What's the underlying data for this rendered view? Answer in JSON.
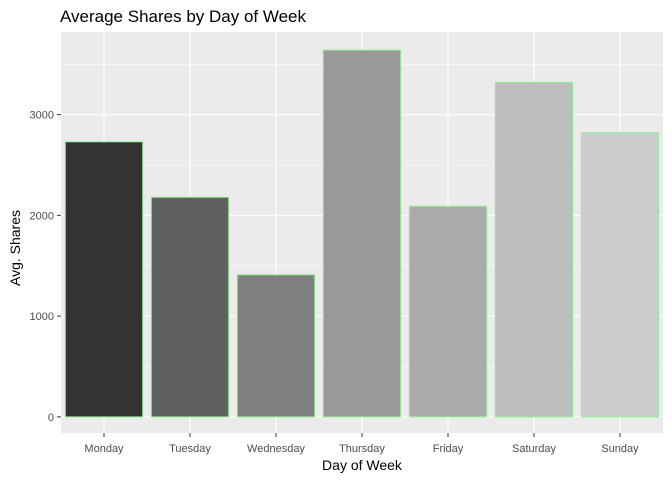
{
  "chart_data": {
    "type": "bar",
    "title": "Average Shares by Day of Week",
    "xlabel": "Day of Week",
    "ylabel": "Avg. Shares",
    "categories": [
      "Monday",
      "Tuesday",
      "Wednesday",
      "Thursday",
      "Friday",
      "Saturday",
      "Sunday"
    ],
    "values": [
      2730,
      2180,
      1410,
      3640,
      2090,
      3320,
      2820
    ],
    "ylim": [
      -160,
      3820
    ],
    "yticks": [
      0,
      1000,
      2000,
      3000
    ],
    "ytick_labels": [
      "0",
      "1000",
      "2000",
      "3000"
    ],
    "grid": true,
    "legend": "none",
    "colors": {
      "panel_background": "#ebebeb",
      "grid_major": "#ffffff",
      "bar_outline": "#90ee90",
      "bar_fills": [
        "#333333",
        "#606060",
        "#7f7f7f",
        "#999999",
        "#ababab",
        "#bdbdbd",
        "#cccccc"
      ]
    }
  }
}
